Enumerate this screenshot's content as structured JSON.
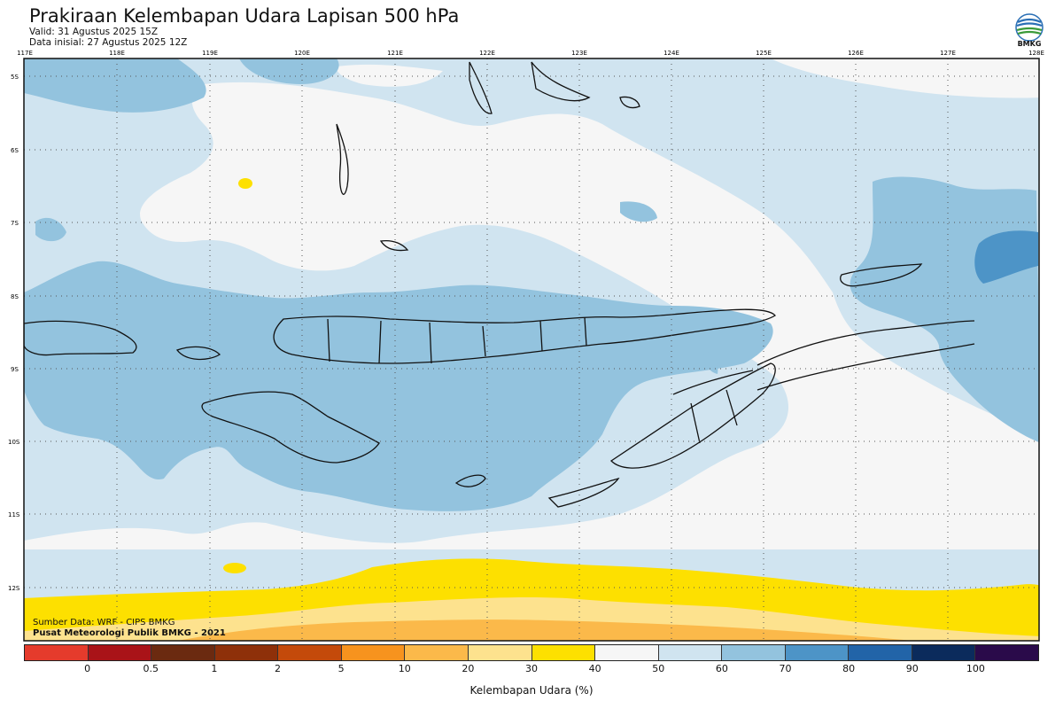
{
  "header": {
    "title": "Prakiraan Kelembapan Udara Lapisan 500 hPa",
    "valid": "Valid: 31 Agustus 2025 15Z",
    "initial": "Data inisial: 27 Agustus 2025 12Z"
  },
  "logo": {
    "text": "BMKG"
  },
  "axes": {
    "lon_labels": [
      "117E",
      "118E",
      "119E",
      "120E",
      "121E",
      "122E",
      "123E",
      "124E",
      "125E",
      "126E",
      "127E",
      "128E"
    ],
    "lat_labels": [
      "5S",
      "6S",
      "7S",
      "8S",
      "9S",
      "10S",
      "11S",
      "12S"
    ]
  },
  "credits": {
    "source": "Sumber Data: WRF - CIPS BMKG",
    "org": "Pusat Meteorologi Publik BMKG - 2021"
  },
  "colorbar": {
    "colors": [
      "#e53b2c",
      "#a91318",
      "#6b2a10",
      "#8e3009",
      "#c44a0a",
      "#f7931e",
      "#fbb94a",
      "#fde28e",
      "#fde000",
      "#f6f6f6",
      "#d0e4f0",
      "#93c3de",
      "#4d94c7",
      "#2264a8",
      "#0b2b5c",
      "#2a0a4a"
    ],
    "ticks": [
      "0",
      "0.5",
      "1",
      "2",
      "5",
      "10",
      "20",
      "30",
      "40",
      "50",
      "60",
      "70",
      "80",
      "90",
      "100"
    ],
    "label": "Kelembapan Udara (%)"
  },
  "legend_palette": {
    "white": "#f6f6f6",
    "light_blue": "#d0e4f0",
    "mid_blue": "#93c3de",
    "dark_blue": "#4d94c7",
    "yellow": "#fde000",
    "light_orange": "#fde28e",
    "orange": "#fbb94a"
  }
}
